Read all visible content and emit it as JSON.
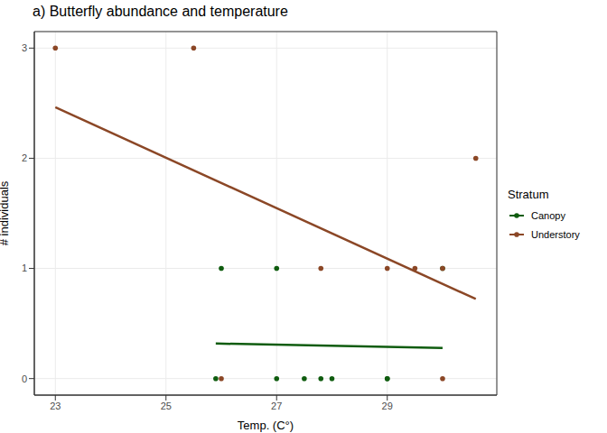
{
  "chart_data": {
    "type": "scatter",
    "title": "a) Butterfly abundance and temperature",
    "x_label": "Temp. (C°)",
    "y_label": "# individuals",
    "xlim": [
      22.62,
      30.98
    ],
    "xticks": [
      23,
      25,
      27,
      29
    ],
    "ylim": [
      -0.15,
      3.15
    ],
    "yticks": [
      0,
      1,
      2,
      3
    ],
    "grid": true,
    "legend": "right",
    "legend_title": "Stratum",
    "marker": "circle",
    "series": [
      {
        "name": "Canopy",
        "color": "#0f5c0f",
        "x": [
          26,
          27,
          30,
          25.9,
          27,
          27.5,
          27.8,
          28,
          29,
          29
        ],
        "values": [
          1,
          1,
          1,
          0,
          0,
          0,
          0,
          0,
          0,
          0
        ]
      },
      {
        "name": "Understory",
        "color": "#8B4726",
        "x": [
          23,
          25.5,
          26,
          27.8,
          29,
          29.5,
          30,
          30,
          30.6
        ],
        "values": [
          3,
          3,
          0,
          1,
          1,
          1,
          1,
          0,
          2
        ]
      }
    ]
  }
}
